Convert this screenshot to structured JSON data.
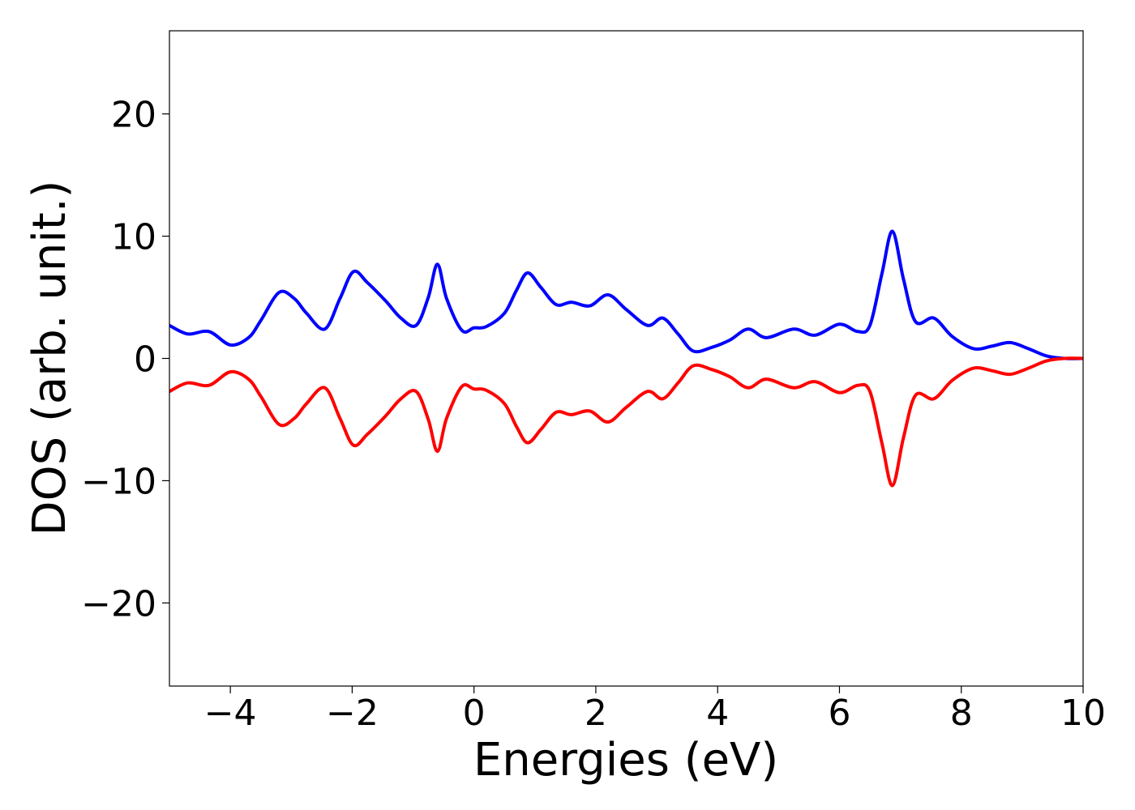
{
  "chart_data": {
    "type": "line",
    "title": "",
    "xlabel": "Energies (eV)",
    "ylabel": "DOS (arb. unit.)",
    "xlim": [
      -5,
      10
    ],
    "ylim": [
      -26.8,
      26.8
    ],
    "grid": false,
    "legend": "none",
    "x_ticks": [
      {
        "value": -4,
        "label": "−4"
      },
      {
        "value": -2,
        "label": "−2"
      },
      {
        "value": 0,
        "label": "0"
      },
      {
        "value": 2,
        "label": "2"
      },
      {
        "value": 4,
        "label": "4"
      },
      {
        "value": 6,
        "label": "6"
      },
      {
        "value": 8,
        "label": "8"
      },
      {
        "value": 10,
        "label": "10"
      }
    ],
    "y_ticks": [
      {
        "value": -20,
        "label": "−20"
      },
      {
        "value": -10,
        "label": "−10"
      },
      {
        "value": 0,
        "label": "0"
      },
      {
        "value": 10,
        "label": "10"
      },
      {
        "value": 20,
        "label": "20"
      }
    ],
    "series": [
      {
        "color": "#0000ff",
        "x": [
          -5.0,
          -4.7,
          -4.35,
          -4.0,
          -3.7,
          -3.5,
          -3.2,
          -2.95,
          -2.75,
          -2.45,
          -2.2,
          -1.98,
          -1.75,
          -1.45,
          -1.2,
          -0.95,
          -0.75,
          -0.6,
          -0.45,
          -0.2,
          0.0,
          0.2,
          0.5,
          0.7,
          0.88,
          1.1,
          1.35,
          1.6,
          1.9,
          2.2,
          2.5,
          2.85,
          3.1,
          3.35,
          3.6,
          3.9,
          4.2,
          4.5,
          4.8,
          5.25,
          5.6,
          6.0,
          6.3,
          6.5,
          6.7,
          6.87,
          7.05,
          7.25,
          7.55,
          7.85,
          8.2,
          8.5,
          8.8,
          9.1,
          9.4,
          9.7,
          10.0
        ],
        "values": [
          2.7,
          2.0,
          2.2,
          1.1,
          1.7,
          3.1,
          5.4,
          4.9,
          3.7,
          2.4,
          4.9,
          7.1,
          6.2,
          4.7,
          3.3,
          2.7,
          5.0,
          7.7,
          4.9,
          2.3,
          2.5,
          2.6,
          3.7,
          5.6,
          7.0,
          5.8,
          4.4,
          4.6,
          4.3,
          5.2,
          4.0,
          2.7,
          3.3,
          2.0,
          0.6,
          0.9,
          1.5,
          2.4,
          1.7,
          2.4,
          1.9,
          2.8,
          2.2,
          2.7,
          7.0,
          10.4,
          6.5,
          3.0,
          3.3,
          1.8,
          0.8,
          1.0,
          1.3,
          0.8,
          0.2,
          0.0,
          0.0
        ]
      },
      {
        "color": "#ff0000",
        "x": [
          -5.0,
          -4.7,
          -4.35,
          -4.0,
          -3.7,
          -3.5,
          -3.2,
          -2.95,
          -2.75,
          -2.45,
          -2.2,
          -1.98,
          -1.75,
          -1.45,
          -1.2,
          -0.95,
          -0.75,
          -0.6,
          -0.45,
          -0.2,
          0.0,
          0.2,
          0.5,
          0.7,
          0.88,
          1.1,
          1.35,
          1.6,
          1.9,
          2.2,
          2.5,
          2.85,
          3.1,
          3.35,
          3.6,
          3.9,
          4.2,
          4.5,
          4.8,
          5.25,
          5.6,
          6.0,
          6.3,
          6.5,
          6.7,
          6.87,
          7.05,
          7.25,
          7.55,
          7.85,
          8.2,
          8.5,
          8.8,
          9.1,
          9.4,
          9.7,
          10.0
        ],
        "values": [
          -2.7,
          -2.0,
          -2.2,
          -1.1,
          -1.7,
          -3.1,
          -5.4,
          -4.9,
          -3.7,
          -2.4,
          -4.9,
          -7.1,
          -6.2,
          -4.7,
          -3.3,
          -2.7,
          -5.0,
          -7.6,
          -4.9,
          -2.3,
          -2.5,
          -2.6,
          -3.7,
          -5.6,
          -6.9,
          -5.8,
          -4.4,
          -4.6,
          -4.3,
          -5.2,
          -4.0,
          -2.7,
          -3.3,
          -2.0,
          -0.6,
          -0.9,
          -1.5,
          -2.4,
          -1.7,
          -2.4,
          -1.9,
          -2.8,
          -2.2,
          -2.7,
          -7.0,
          -10.4,
          -6.5,
          -3.0,
          -3.3,
          -1.8,
          -0.8,
          -1.0,
          -1.3,
          -0.8,
          -0.2,
          0.0,
          0.0
        ]
      }
    ]
  }
}
